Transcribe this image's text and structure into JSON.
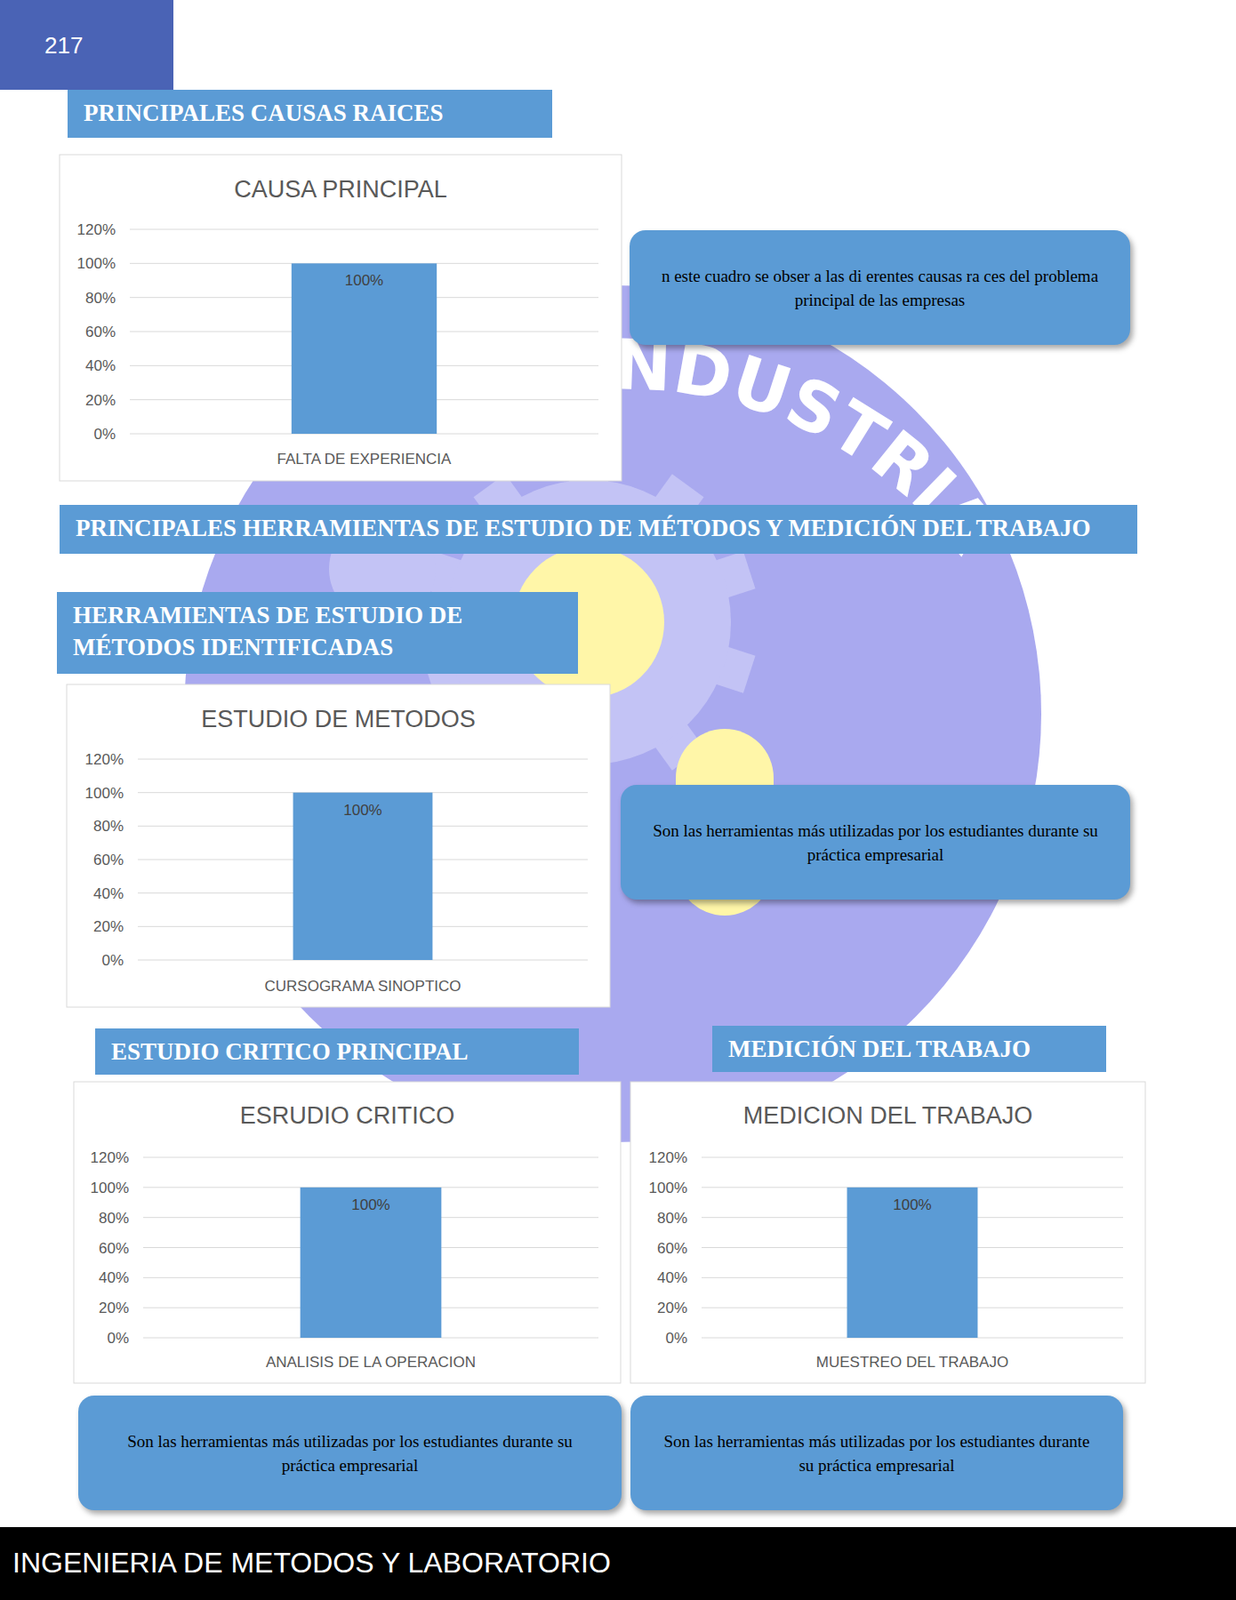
{
  "page_number": "217",
  "footer": "INGENIERIA DE METODOS Y LABORATORIO",
  "watermark": "INDUSTRIA",
  "headings": [
    "PRINCIPALES CAUSAS RAICES",
    "PRINCIPALES HERRAMIENTAS DE ESTUDIO DE MÉTODOS Y MEDICIÓN DEL TRABAJO",
    "HERRAMIENTAS DE ESTUDIO DE MÉTODOS IDENTIFICADAS",
    "ESTUDIO CRITICO PRINCIPAL",
    "MEDICIÓN DEL TRABAJO"
  ],
  "notes": [
    "n este cuadro se obser  a las di erentes causas ra ces del problema principal de las empresas",
    "Son las herramientas más utilizadas por los estudiantes durante su práctica empresarial",
    "Son las herramientas más utilizadas por los estudiantes durante su práctica empresarial",
    "Son las herramientas más utilizadas por los estudiantes durante su práctica empresarial"
  ],
  "chart_data": [
    {
      "type": "bar",
      "title": "CAUSA PRINCIPAL",
      "categories": [
        "FALTA DE EXPERIENCIA"
      ],
      "values": [
        100
      ],
      "value_labels": [
        "100%"
      ],
      "color": "#5b9bd5",
      "ylim": [
        0,
        120
      ],
      "yticks": [
        {
          "value": 0,
          "label": "0%"
        },
        {
          "value": 20,
          "label": "20%"
        },
        {
          "value": 40,
          "label": "40%"
        },
        {
          "value": 60,
          "label": "60%"
        },
        {
          "value": 80,
          "label": "80%"
        },
        {
          "value": 100,
          "label": "100%"
        },
        {
          "value": 120,
          "label": "120%"
        }
      ],
      "grid": true,
      "data_labels": true
    },
    {
      "type": "bar",
      "title": "ESTUDIO DE METODOS",
      "categories": [
        "CURSOGRAMA SINOPTICO"
      ],
      "values": [
        100
      ],
      "value_labels": [
        "100%"
      ],
      "color": "#5b9bd5",
      "ylim": [
        0,
        120
      ],
      "yticks": [
        {
          "value": 0,
          "label": "0%"
        },
        {
          "value": 20,
          "label": "20%"
        },
        {
          "value": 40,
          "label": "40%"
        },
        {
          "value": 60,
          "label": "60%"
        },
        {
          "value": 80,
          "label": "80%"
        },
        {
          "value": 100,
          "label": "100%"
        },
        {
          "value": 120,
          "label": "120%"
        }
      ],
      "grid": true,
      "data_labels": true
    },
    {
      "type": "bar",
      "title": "ESRUDIO CRITICO",
      "categories": [
        "ANALISIS DE LA OPERACION"
      ],
      "values": [
        100
      ],
      "value_labels": [
        "100%"
      ],
      "color": "#5b9bd5",
      "ylim": [
        0,
        120
      ],
      "yticks": [
        {
          "value": 0,
          "label": "0%"
        },
        {
          "value": 20,
          "label": "20%"
        },
        {
          "value": 40,
          "label": "40%"
        },
        {
          "value": 60,
          "label": "60%"
        },
        {
          "value": 80,
          "label": "80%"
        },
        {
          "value": 100,
          "label": "100%"
        },
        {
          "value": 120,
          "label": "120%"
        }
      ],
      "grid": true,
      "data_labels": true
    },
    {
      "type": "bar",
      "title": "MEDICION DEL TRABAJO",
      "categories": [
        "MUESTREO DEL TRABAJO"
      ],
      "values": [
        100
      ],
      "value_labels": [
        "100%"
      ],
      "color": "#5b9bd5",
      "ylim": [
        0,
        120
      ],
      "yticks": [
        {
          "value": 0,
          "label": "0%"
        },
        {
          "value": 20,
          "label": "20%"
        },
        {
          "value": 40,
          "label": "40%"
        },
        {
          "value": 60,
          "label": "60%"
        },
        {
          "value": 80,
          "label": "80%"
        },
        {
          "value": 100,
          "label": "100%"
        },
        {
          "value": 120,
          "label": "120%"
        }
      ],
      "grid": true,
      "data_labels": true
    }
  ]
}
